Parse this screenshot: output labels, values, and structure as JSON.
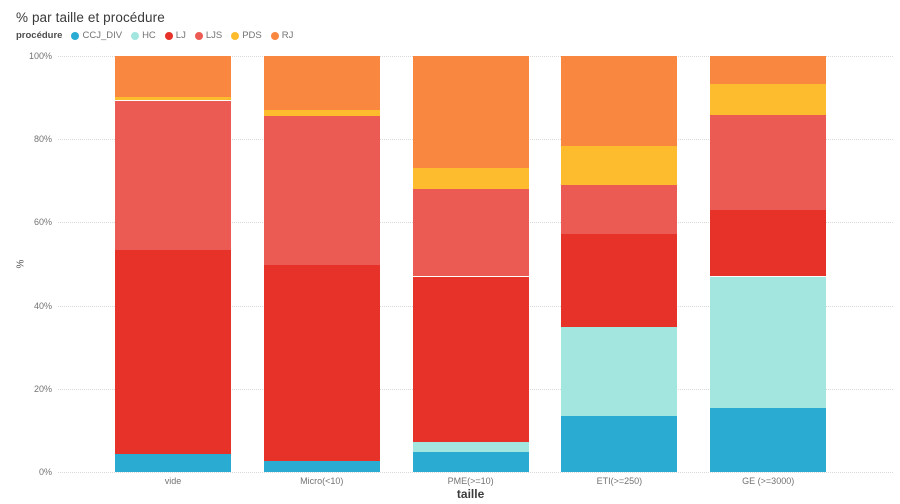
{
  "chart_data": {
    "type": "bar",
    "stacked": true,
    "percent_stacked": true,
    "title": "% par taille et procédure",
    "legend_title": "procédure",
    "legend_position": "top",
    "xlabel": "taille",
    "ylabel": "%",
    "ylim": [
      0,
      100
    ],
    "yticks": [
      0,
      20,
      40,
      60,
      80,
      100
    ],
    "ytick_suffix": "%",
    "grid": "dotted-horizontal",
    "categories": [
      "vide",
      "Micro(<10)",
      "PME(>=10)",
      "ETI(>=250)",
      "GE (>=3000)"
    ],
    "series": [
      {
        "name": "CCJ_DIV",
        "color": "#2aabd2",
        "values": [
          4.3,
          2.7,
          4.7,
          13.5,
          15.3
        ]
      },
      {
        "name": "HC",
        "color": "#a2e6df",
        "values": [
          0,
          0,
          2.6,
          21.3,
          31.7
        ]
      },
      {
        "name": "LJ",
        "color": "#e63228",
        "values": [
          49.0,
          47.0,
          39.7,
          22.4,
          15.9
        ]
      },
      {
        "name": "LJS",
        "color": "#ec5b53",
        "values": [
          36.0,
          35.9,
          21.0,
          11.8,
          23.0
        ]
      },
      {
        "name": "PDS",
        "color": "#fcbc2e",
        "values": [
          0.8,
          1.5,
          5.0,
          9.3,
          7.4
        ]
      },
      {
        "name": "RJ",
        "color": "#f9873f",
        "values": [
          9.9,
          12.9,
          27.0,
          21.7,
          6.7
        ]
      }
    ],
    "colors": {
      "text_dark": "#3a3a3a",
      "text_gray": "#737373",
      "gridline": "#d9d9d9",
      "background": "#ffffff"
    }
  }
}
